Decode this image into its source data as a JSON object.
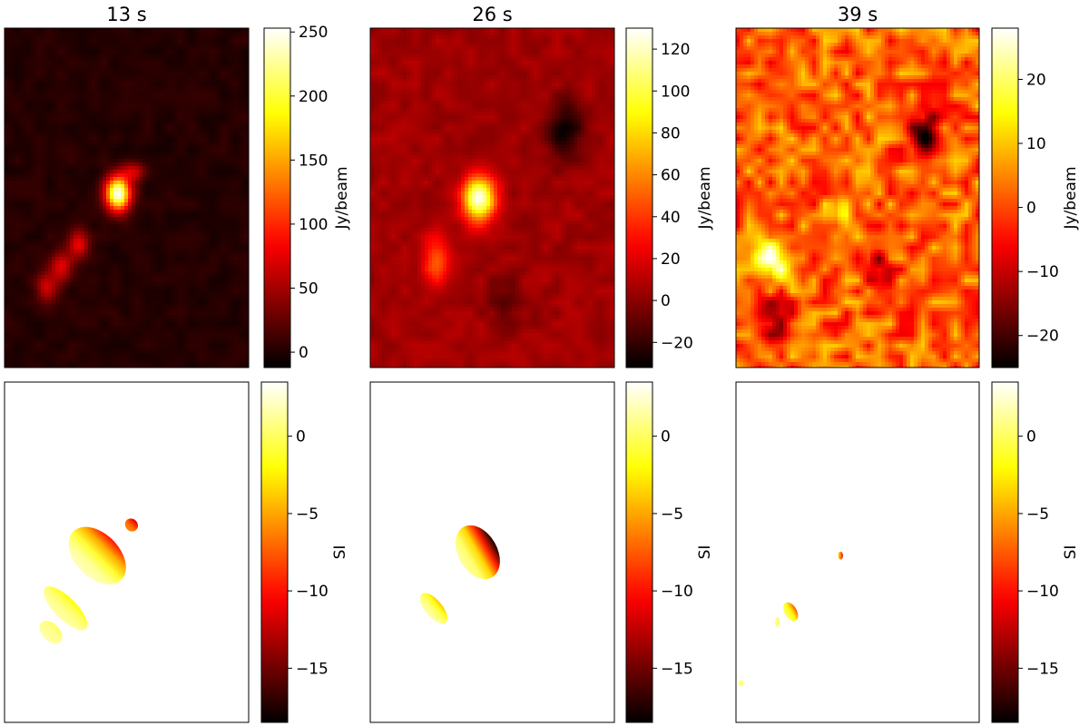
{
  "chart_data": [
    {
      "type": "heatmap",
      "title": "13 s",
      "colormap": "hot",
      "colorbar": {
        "label": "Jy/beam",
        "range": [
          -12,
          253
        ],
        "ticks": [
          0,
          50,
          100,
          150,
          200,
          250
        ],
        "tick_labels": [
          "0",
          "50",
          "100",
          "150",
          "200",
          "250"
        ]
      },
      "background": 2,
      "noise_amplitude": 6,
      "sources": [
        {
          "x": 0.46,
          "y": 0.485,
          "peak": 250,
          "sx": 0.035,
          "sy": 0.035
        },
        {
          "x": 0.52,
          "y": 0.42,
          "peak": 60,
          "sx": 0.035,
          "sy": 0.02
        },
        {
          "x": 0.3,
          "y": 0.63,
          "peak": 75,
          "sx": 0.03,
          "sy": 0.03
        },
        {
          "x": 0.23,
          "y": 0.7,
          "peak": 70,
          "sx": 0.035,
          "sy": 0.03
        },
        {
          "x": 0.17,
          "y": 0.76,
          "peak": 65,
          "sx": 0.03,
          "sy": 0.03
        }
      ]
    },
    {
      "type": "heatmap",
      "title": "26 s",
      "colormap": "hot",
      "colorbar": {
        "label": "Jy/beam",
        "range": [
          -32,
          130
        ],
        "ticks": [
          -20,
          0,
          20,
          40,
          60,
          80,
          100,
          120
        ],
        "tick_labels": [
          "−20",
          "0",
          "20",
          "40",
          "60",
          "80",
          "100",
          "120"
        ]
      },
      "background": 5,
      "noise_amplitude": 6,
      "sources": [
        {
          "x": 0.44,
          "y": 0.5,
          "peak": 125,
          "sx": 0.045,
          "sy": 0.045
        },
        {
          "x": 0.27,
          "y": 0.68,
          "peak": 45,
          "sx": 0.04,
          "sy": 0.05
        },
        {
          "x": 0.79,
          "y": 0.3,
          "peak": -35,
          "sx": 0.05,
          "sy": 0.06
        },
        {
          "x": 0.55,
          "y": 0.8,
          "peak": -15,
          "sx": 0.05,
          "sy": 0.05
        }
      ]
    },
    {
      "type": "heatmap",
      "title": "39 s",
      "colormap": "hot",
      "colorbar": {
        "label": "Jy/beam",
        "range": [
          -25,
          28
        ],
        "ticks": [
          -20,
          -10,
          0,
          10,
          20
        ],
        "tick_labels": [
          "−20",
          "−10",
          "0",
          "10",
          "20"
        ]
      },
      "background": 2,
      "noise_amplitude": 9,
      "sources": [
        {
          "x": 0.15,
          "y": 0.68,
          "peak": 22,
          "sx": 0.05,
          "sy": 0.05
        },
        {
          "x": 0.42,
          "y": 0.53,
          "peak": 12,
          "sx": 0.03,
          "sy": 0.04
        },
        {
          "x": 0.78,
          "y": 0.32,
          "peak": -30,
          "sx": 0.04,
          "sy": 0.05
        },
        {
          "x": 0.58,
          "y": 0.7,
          "peak": -12,
          "sx": 0.04,
          "sy": 0.06
        },
        {
          "x": 0.15,
          "y": 0.85,
          "peak": -14,
          "sx": 0.05,
          "sy": 0.05
        }
      ]
    },
    {
      "type": "heatmap",
      "title": "",
      "colormap": "hot",
      "colorbar": {
        "label": "SI",
        "range": [
          -18.5,
          3.5
        ],
        "ticks": [
          -15,
          -10,
          -5,
          0
        ],
        "tick_labels": [
          "−15",
          "−10",
          "−5",
          "0"
        ]
      },
      "regions": [
        {
          "x": 0.38,
          "y": 0.51,
          "sx": 0.09,
          "sy": 0.1,
          "angle": -45,
          "si_left": 2,
          "si_right": -10
        },
        {
          "x": 0.25,
          "y": 0.665,
          "sx": 0.045,
          "sy": 0.085,
          "angle": -45,
          "si_left": 1.5,
          "si_right": -2
        },
        {
          "x": 0.19,
          "y": 0.735,
          "sx": 0.035,
          "sy": 0.04,
          "angle": -45,
          "si_left": 1.5,
          "si_right": 0
        },
        {
          "x": 0.52,
          "y": 0.42,
          "sx": 0.025,
          "sy": 0.02,
          "angle": -45,
          "si_left": -6,
          "si_right": -12
        }
      ]
    },
    {
      "type": "heatmap",
      "title": "",
      "colormap": "hot",
      "colorbar": {
        "label": "SI",
        "range": [
          -18.5,
          3.5
        ],
        "ticks": [
          -15,
          -10,
          -5,
          0
        ],
        "tick_labels": [
          "−15",
          "−10",
          "−5",
          "0"
        ]
      },
      "regions": [
        {
          "x": 0.44,
          "y": 0.5,
          "sx": 0.08,
          "sy": 0.085,
          "angle": -30,
          "si_left": 1.5,
          "si_right": -18
        },
        {
          "x": 0.26,
          "y": 0.665,
          "sx": 0.035,
          "sy": 0.055,
          "angle": -40,
          "si_left": 1.5,
          "si_right": -4
        }
      ]
    },
    {
      "type": "heatmap",
      "title": "",
      "colormap": "hot",
      "colorbar": {
        "label": "SI",
        "range": [
          -18.5,
          3.5
        ],
        "ticks": [
          -15,
          -10,
          -5,
          0
        ],
        "tick_labels": [
          "−15",
          "−10",
          "−5",
          "0"
        ]
      },
      "regions": [
        {
          "x": 0.225,
          "y": 0.675,
          "sx": 0.025,
          "sy": 0.03,
          "angle": -30,
          "si_left": 0,
          "si_right": -8
        },
        {
          "x": 0.17,
          "y": 0.705,
          "sx": 0.01,
          "sy": 0.015,
          "angle": 0,
          "si_left": 1,
          "si_right": 0
        },
        {
          "x": 0.43,
          "y": 0.51,
          "sx": 0.01,
          "sy": 0.012,
          "angle": 0,
          "si_left": -4,
          "si_right": -12
        },
        {
          "x": 0.02,
          "y": 0.885,
          "sx": 0.01,
          "sy": 0.01,
          "angle": 0,
          "si_left": 1,
          "si_right": 0
        }
      ]
    }
  ]
}
